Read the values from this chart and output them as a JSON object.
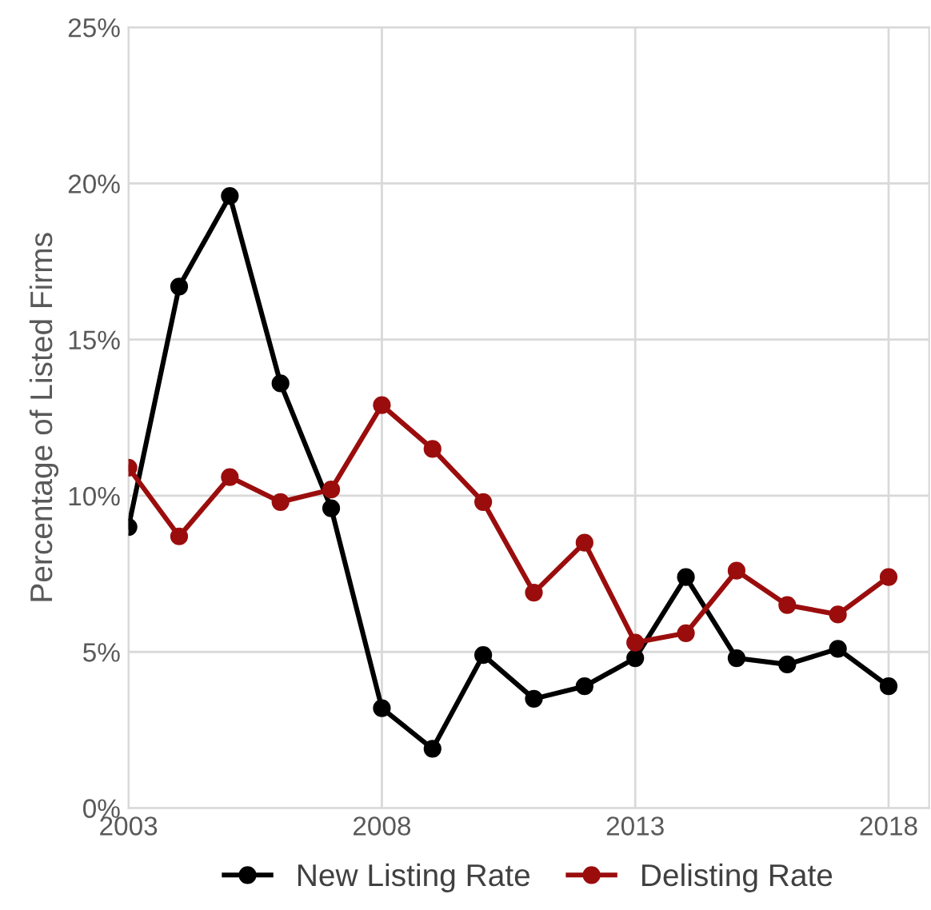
{
  "chart_data": {
    "type": "line",
    "ylabel": "Percentage of Listed Firms",
    "x": [
      2003,
      2004,
      2005,
      2006,
      2007,
      2008,
      2009,
      2010,
      2011,
      2012,
      2013,
      2014,
      2015,
      2016,
      2017,
      2018
    ],
    "series": [
      {
        "name": "New Listing Rate",
        "color": "#000000",
        "values": [
          9.0,
          16.7,
          19.6,
          13.6,
          9.6,
          3.2,
          1.9,
          4.9,
          3.5,
          3.9,
          4.8,
          7.4,
          4.8,
          4.6,
          5.1,
          3.9
        ]
      },
      {
        "name": "Delisting Rate",
        "color": "#9b0d0d",
        "values": [
          10.9,
          8.7,
          10.6,
          9.8,
          10.2,
          12.9,
          11.5,
          9.8,
          6.9,
          8.5,
          5.3,
          5.6,
          7.6,
          6.5,
          6.2,
          7.4
        ]
      }
    ],
    "xlim": [
      2003,
      2018.8
    ],
    "xticks": [
      2003,
      2008,
      2013,
      2018
    ],
    "ylim": [
      0,
      25
    ],
    "yticks": [
      {
        "value": 0,
        "label": "0%"
      },
      {
        "value": 5,
        "label": "5%"
      },
      {
        "value": 10,
        "label": "10%"
      },
      {
        "value": 15,
        "label": "15%"
      },
      {
        "value": 20,
        "label": "20%"
      },
      {
        "value": 25,
        "label": "25%"
      }
    ],
    "grid": true,
    "legend": "bottom",
    "marker": "circle",
    "line_style": "solid"
  }
}
